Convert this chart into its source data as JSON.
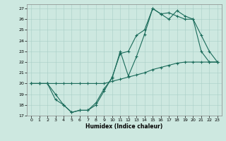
{
  "xlabel": "Humidex (Indice chaleur)",
  "xlim": [
    -0.5,
    23.5
  ],
  "ylim": [
    17,
    27.4
  ],
  "yticks": [
    17,
    18,
    19,
    20,
    21,
    22,
    23,
    24,
    25,
    26,
    27
  ],
  "xticks": [
    0,
    1,
    2,
    3,
    4,
    5,
    6,
    7,
    8,
    9,
    10,
    11,
    12,
    13,
    14,
    15,
    16,
    17,
    18,
    19,
    20,
    21,
    22,
    23
  ],
  "bg_color": "#cde8e0",
  "grid_color": "#a8cec6",
  "line_color": "#1a6b5a",
  "line1_x": [
    0,
    1,
    2,
    3,
    4,
    5,
    6,
    7,
    8,
    9,
    10,
    11,
    12,
    13,
    14,
    15,
    16,
    17,
    18,
    19,
    20,
    21,
    22,
    23
  ],
  "line1_y": [
    20,
    20,
    20,
    19,
    18,
    17.3,
    17.5,
    17.5,
    18.2,
    19.5,
    20.5,
    23.0,
    20.7,
    22.5,
    24.6,
    27.0,
    26.5,
    26.6,
    26.3,
    26.0,
    26.0,
    23.0,
    22.0,
    22.0
  ],
  "line2_x": [
    0,
    1,
    2,
    3,
    4,
    5,
    6,
    7,
    8,
    9,
    10,
    11,
    12,
    13,
    14,
    15,
    16,
    17,
    18,
    19,
    20,
    21,
    22,
    23
  ],
  "line2_y": [
    20,
    20,
    20,
    18.5,
    18.0,
    17.3,
    17.5,
    17.5,
    18.0,
    19.3,
    20.6,
    22.8,
    23.0,
    24.5,
    25.0,
    27.0,
    26.5,
    26.0,
    26.8,
    26.3,
    26.0,
    24.5,
    23.0,
    22.0
  ],
  "line3_x": [
    0,
    1,
    2,
    3,
    4,
    5,
    6,
    7,
    8,
    9,
    10,
    11,
    12,
    13,
    14,
    15,
    16,
    17,
    18,
    19,
    20,
    21,
    22,
    23
  ],
  "line3_y": [
    20,
    20,
    20,
    20,
    20,
    20,
    20,
    20,
    20,
    20,
    20.2,
    20.4,
    20.6,
    20.8,
    21.0,
    21.3,
    21.5,
    21.7,
    21.9,
    22.0,
    22.0,
    22.0,
    22.0,
    22.0
  ]
}
